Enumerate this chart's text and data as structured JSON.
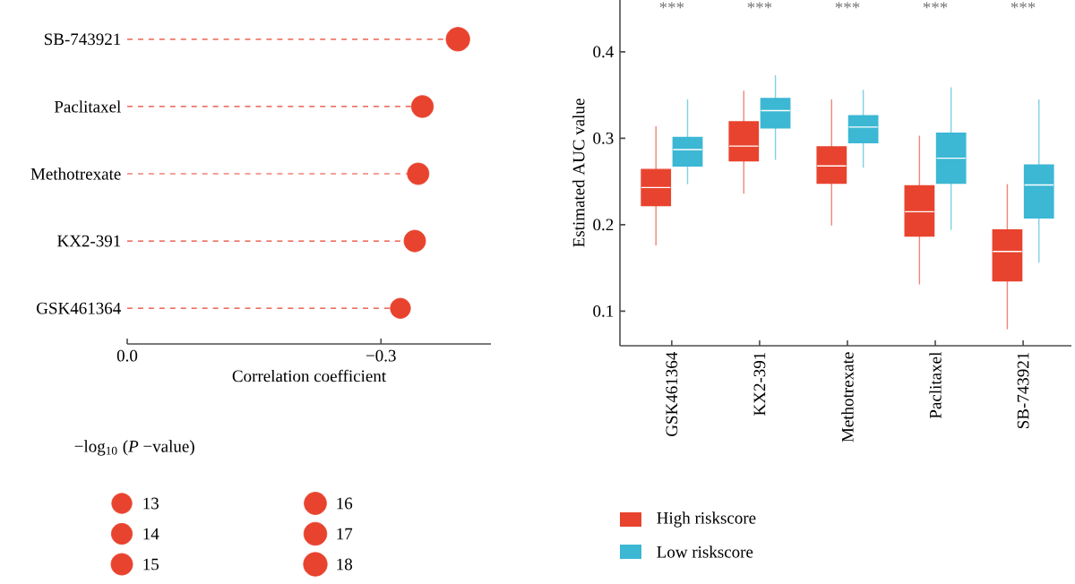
{
  "chart_data": [
    {
      "type": "lollipop",
      "orientation": "horizontal",
      "xlabel": "Correlation coefficient",
      "legend_title": "−log$_{10}$ (*P* −value)",
      "categories": [
        "SB-743921",
        "Paclitaxel",
        "Methotrexate",
        "KX2-391",
        "GSK461364"
      ],
      "values": [
        -0.391,
        -0.349,
        -0.344,
        -0.34,
        -0.323
      ],
      "sizes": [
        18,
        15.5,
        15,
        15,
        13
      ],
      "size_legend": [
        13,
        14,
        15,
        16,
        17,
        18
      ],
      "color": "#e8432e",
      "line_style": "dashed",
      "marker": "circle",
      "xlim": [
        0,
        -0.43
      ],
      "xticks": [
        {
          "value": 0,
          "label": "0.0"
        },
        {
          "value": -0.3,
          "label": "−0.3"
        }
      ]
    },
    {
      "type": "box",
      "ylabel": "Estimated AUC value",
      "legend": "bottom",
      "categories": [
        "GSK461364",
        "KX2-391",
        "Methotrexate",
        "Paclitaxel",
        "SB-743921"
      ],
      "ylim": [
        0.06,
        0.46
      ],
      "yticks": [
        0.1,
        0.2,
        0.3,
        0.4
      ],
      "annotations": [
        "***",
        "***",
        "***",
        "***",
        "***"
      ],
      "series": [
        {
          "name": "High riskscore",
          "color": "#e8432e",
          "boxes": [
            {
              "low": 0.176,
              "q1": 0.222,
              "median": 0.243,
              "q3": 0.264,
              "high": 0.314
            },
            {
              "low": 0.236,
              "q1": 0.274,
              "median": 0.291,
              "q3": 0.319,
              "high": 0.355
            },
            {
              "low": 0.199,
              "q1": 0.248,
              "median": 0.268,
              "q3": 0.29,
              "high": 0.345
            },
            {
              "low": 0.131,
              "q1": 0.187,
              "median": 0.215,
              "q3": 0.245,
              "high": 0.303
            },
            {
              "low": 0.079,
              "q1": 0.135,
              "median": 0.169,
              "q3": 0.194,
              "high": 0.247
            }
          ]
        },
        {
          "name": "Low riskscore",
          "color": "#3cb7d4",
          "boxes": [
            {
              "low": 0.247,
              "q1": 0.268,
              "median": 0.287,
              "q3": 0.301,
              "high": 0.345
            },
            {
              "low": 0.275,
              "q1": 0.312,
              "median": 0.332,
              "q3": 0.346,
              "high": 0.373
            },
            {
              "low": 0.266,
              "q1": 0.295,
              "median": 0.313,
              "q3": 0.326,
              "high": 0.356
            },
            {
              "low": 0.194,
              "q1": 0.248,
              "median": 0.277,
              "q3": 0.306,
              "high": 0.359
            },
            {
              "low": 0.156,
              "q1": 0.208,
              "median": 0.246,
              "q3": 0.269,
              "high": 0.345
            }
          ]
        }
      ]
    }
  ]
}
